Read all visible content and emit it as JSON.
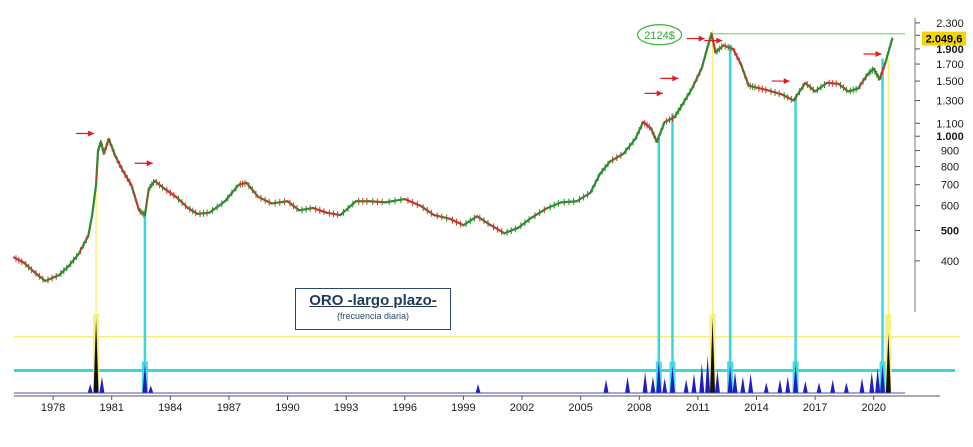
{
  "chart_data": {
    "type": "line",
    "title": "ORO -largo plazo-",
    "subtitle": "(frecuencia diaria)",
    "xlabel": "",
    "ylabel": "",
    "y_scale": "log",
    "ylim": [
      300,
      2350
    ],
    "xlim": [
      1976.0,
      2021.6
    ],
    "y_ticks": [
      {
        "value": 2300,
        "label": "2.300",
        "bold": false
      },
      {
        "value": 2100,
        "label": "2.100",
        "bold": false
      },
      {
        "value": 1900,
        "label": "1.900",
        "bold": true
      },
      {
        "value": 1700,
        "label": "1.700",
        "bold": false
      },
      {
        "value": 1500,
        "label": "1.500",
        "bold": false
      },
      {
        "value": 1300,
        "label": "1.300",
        "bold": false
      },
      {
        "value": 1100,
        "label": "1.100",
        "bold": false
      },
      {
        "value": 1000,
        "label": "1.000",
        "bold": true
      },
      {
        "value": 900,
        "label": "900",
        "bold": false
      },
      {
        "value": 800,
        "label": "800",
        "bold": false
      },
      {
        "value": 700,
        "label": "700",
        "bold": false
      },
      {
        "value": 600,
        "label": "600",
        "bold": false
      },
      {
        "value": 500,
        "label": "500",
        "bold": true
      },
      {
        "value": 400,
        "label": "400",
        "bold": false
      }
    ],
    "x_ticks": [
      {
        "value": 1978,
        "label": "1978"
      },
      {
        "value": 1981,
        "label": "1981"
      },
      {
        "value": 1984,
        "label": "1984"
      },
      {
        "value": 1987,
        "label": "1987"
      },
      {
        "value": 1990,
        "label": "1990"
      },
      {
        "value": 1993,
        "label": "1993"
      },
      {
        "value": 1996,
        "label": "1996"
      },
      {
        "value": 1999,
        "label": "1999"
      },
      {
        "value": 2002,
        "label": "2002"
      },
      {
        "value": 2005,
        "label": "2005"
      },
      {
        "value": 2008,
        "label": "2008"
      },
      {
        "value": 2011,
        "label": "2011"
      },
      {
        "value": 2014,
        "label": "2014"
      },
      {
        "value": 2017,
        "label": "2017"
      },
      {
        "value": 2020,
        "label": "2020"
      }
    ],
    "series": [
      {
        "values": [
          {
            "x": 1976.0,
            "y": 410
          },
          {
            "x": 1976.5,
            "y": 395
          },
          {
            "x": 1977.0,
            "y": 370
          },
          {
            "x": 1977.6,
            "y": 345
          },
          {
            "x": 1978.3,
            "y": 360
          },
          {
            "x": 1978.8,
            "y": 385
          },
          {
            "x": 1979.3,
            "y": 420
          },
          {
            "x": 1979.8,
            "y": 480
          },
          {
            "x": 1980.0,
            "y": 560
          },
          {
            "x": 1980.2,
            "y": 700
          },
          {
            "x": 1980.3,
            "y": 900
          },
          {
            "x": 1980.45,
            "y": 960
          },
          {
            "x": 1980.6,
            "y": 880
          },
          {
            "x": 1980.85,
            "y": 980
          },
          {
            "x": 1981.2,
            "y": 860
          },
          {
            "x": 1981.6,
            "y": 770
          },
          {
            "x": 1982.0,
            "y": 700
          },
          {
            "x": 1982.4,
            "y": 580
          },
          {
            "x": 1982.7,
            "y": 560
          },
          {
            "x": 1982.9,
            "y": 680
          },
          {
            "x": 1983.2,
            "y": 720
          },
          {
            "x": 1983.7,
            "y": 680
          },
          {
            "x": 1984.3,
            "y": 640
          },
          {
            "x": 1984.9,
            "y": 590
          },
          {
            "x": 1985.4,
            "y": 565
          },
          {
            "x": 1986.0,
            "y": 570
          },
          {
            "x": 1986.8,
            "y": 620
          },
          {
            "x": 1987.5,
            "y": 700
          },
          {
            "x": 1987.9,
            "y": 710
          },
          {
            "x": 1988.5,
            "y": 640
          },
          {
            "x": 1989.2,
            "y": 610
          },
          {
            "x": 1990.0,
            "y": 620
          },
          {
            "x": 1990.6,
            "y": 580
          },
          {
            "x": 1991.3,
            "y": 590
          },
          {
            "x": 1992.0,
            "y": 570
          },
          {
            "x": 1992.7,
            "y": 560
          },
          {
            "x": 1993.5,
            "y": 620
          },
          {
            "x": 1994.2,
            "y": 620
          },
          {
            "x": 1995.0,
            "y": 615
          },
          {
            "x": 1996.0,
            "y": 630
          },
          {
            "x": 1996.8,
            "y": 600
          },
          {
            "x": 1997.5,
            "y": 560
          },
          {
            "x": 1998.3,
            "y": 545
          },
          {
            "x": 1999.0,
            "y": 520
          },
          {
            "x": 1999.7,
            "y": 555
          },
          {
            "x": 2000.4,
            "y": 520
          },
          {
            "x": 2001.1,
            "y": 490
          },
          {
            "x": 2001.8,
            "y": 510
          },
          {
            "x": 2002.5,
            "y": 550
          },
          {
            "x": 2003.3,
            "y": 590
          },
          {
            "x": 2004.0,
            "y": 615
          },
          {
            "x": 2004.8,
            "y": 620
          },
          {
            "x": 2005.5,
            "y": 660
          },
          {
            "x": 2006.0,
            "y": 760
          },
          {
            "x": 2006.5,
            "y": 830
          },
          {
            "x": 2007.2,
            "y": 880
          },
          {
            "x": 2007.8,
            "y": 980
          },
          {
            "x": 2008.2,
            "y": 1110
          },
          {
            "x": 2008.6,
            "y": 1060
          },
          {
            "x": 2008.9,
            "y": 960
          },
          {
            "x": 2009.3,
            "y": 1110
          },
          {
            "x": 2009.8,
            "y": 1150
          },
          {
            "x": 2010.2,
            "y": 1260
          },
          {
            "x": 2010.7,
            "y": 1420
          },
          {
            "x": 2011.2,
            "y": 1650
          },
          {
            "x": 2011.55,
            "y": 1980
          },
          {
            "x": 2011.7,
            "y": 2124
          },
          {
            "x": 2011.9,
            "y": 1850
          },
          {
            "x": 2012.3,
            "y": 1950
          },
          {
            "x": 2012.8,
            "y": 1900
          },
          {
            "x": 2013.2,
            "y": 1700
          },
          {
            "x": 2013.6,
            "y": 1450
          },
          {
            "x": 2014.0,
            "y": 1430
          },
          {
            "x": 2014.6,
            "y": 1400
          },
          {
            "x": 2015.3,
            "y": 1360
          },
          {
            "x": 2015.9,
            "y": 1300
          },
          {
            "x": 2016.5,
            "y": 1480
          },
          {
            "x": 2017.0,
            "y": 1390
          },
          {
            "x": 2017.6,
            "y": 1480
          },
          {
            "x": 2018.2,
            "y": 1470
          },
          {
            "x": 2018.7,
            "y": 1390
          },
          {
            "x": 2019.2,
            "y": 1420
          },
          {
            "x": 2019.7,
            "y": 1580
          },
          {
            "x": 2020.0,
            "y": 1640
          },
          {
            "x": 2020.3,
            "y": 1520
          },
          {
            "x": 2020.6,
            "y": 1720
          },
          {
            "x": 2020.95,
            "y": 2049.6
          }
        ]
      }
    ],
    "current_value": {
      "label": "2.049,6",
      "value": 2049.6
    },
    "peak_annotation": {
      "label": "2124$",
      "value": 2124,
      "x": 2011.7
    },
    "horizontal_line": 2124,
    "arrows": [
      {
        "x": 1980.1,
        "y": 1020
      },
      {
        "x": 1983.1,
        "y": 820
      },
      {
        "x": 2009.2,
        "y": 1370
      },
      {
        "x": 2010.0,
        "y": 1530
      },
      {
        "x": 2011.35,
        "y": 2050
      },
      {
        "x": 2012.25,
        "y": 2020
      },
      {
        "x": 2015.7,
        "y": 1500
      },
      {
        "x": 2020.4,
        "y": 1830
      }
    ],
    "vertical_markers": [
      {
        "x": 1980.2,
        "color": "yellow"
      },
      {
        "x": 1982.7,
        "color": "cyan"
      },
      {
        "x": 2009.0,
        "color": "cyan"
      },
      {
        "x": 2009.7,
        "color": "cyan"
      },
      {
        "x": 2011.75,
        "color": "yellow"
      },
      {
        "x": 2012.65,
        "color": "cyan"
      },
      {
        "x": 2016.0,
        "color": "cyan"
      },
      {
        "x": 2020.45,
        "color": "cyan"
      },
      {
        "x": 2020.75,
        "color": "yellow"
      }
    ],
    "indicator": {
      "yellow_threshold": 0.75,
      "cyan_threshold": 0.3,
      "spikes": [
        {
          "x": 1979.9,
          "v": 0.12
        },
        {
          "x": 1980.2,
          "v": 1.0
        },
        {
          "x": 1980.5,
          "v": 0.22
        },
        {
          "x": 1982.7,
          "v": 0.38
        },
        {
          "x": 1983.0,
          "v": 0.1
        },
        {
          "x": 1999.75,
          "v": 0.12
        },
        {
          "x": 2006.3,
          "v": 0.18
        },
        {
          "x": 2007.4,
          "v": 0.22
        },
        {
          "x": 2008.3,
          "v": 0.28
        },
        {
          "x": 2008.7,
          "v": 0.22
        },
        {
          "x": 2009.0,
          "v": 0.42
        },
        {
          "x": 2009.3,
          "v": 0.2
        },
        {
          "x": 2009.7,
          "v": 0.36
        },
        {
          "x": 2010.4,
          "v": 0.18
        },
        {
          "x": 2010.8,
          "v": 0.26
        },
        {
          "x": 2011.2,
          "v": 0.4
        },
        {
          "x": 2011.5,
          "v": 0.5
        },
        {
          "x": 2011.75,
          "v": 1.0
        },
        {
          "x": 2012.0,
          "v": 0.3
        },
        {
          "x": 2012.65,
          "v": 0.36
        },
        {
          "x": 2012.9,
          "v": 0.28
        },
        {
          "x": 2013.3,
          "v": 0.22
        },
        {
          "x": 2013.7,
          "v": 0.26
        },
        {
          "x": 2014.5,
          "v": 0.14
        },
        {
          "x": 2015.2,
          "v": 0.18
        },
        {
          "x": 2015.6,
          "v": 0.22
        },
        {
          "x": 2016.0,
          "v": 0.38
        },
        {
          "x": 2016.5,
          "v": 0.16
        },
        {
          "x": 2017.2,
          "v": 0.14
        },
        {
          "x": 2017.9,
          "v": 0.18
        },
        {
          "x": 2018.6,
          "v": 0.14
        },
        {
          "x": 2019.4,
          "v": 0.2
        },
        {
          "x": 2019.9,
          "v": 0.28
        },
        {
          "x": 2020.2,
          "v": 0.34
        },
        {
          "x": 2020.45,
          "v": 0.38
        },
        {
          "x": 2020.75,
          "v": 0.8
        }
      ]
    },
    "colors": {
      "price_up": "#2e8b2e",
      "price_down": "#c0392b",
      "arrow": "#e31a1a",
      "cyan": "#39d8e0",
      "yellow": "#f5f07a",
      "yellow_strong": "#f2e600",
      "indicator": "#1f1fbf",
      "peak_line": "#8fe08f",
      "current_value_bg": "#f2d400",
      "axis_text": "#1a1a1a"
    }
  }
}
